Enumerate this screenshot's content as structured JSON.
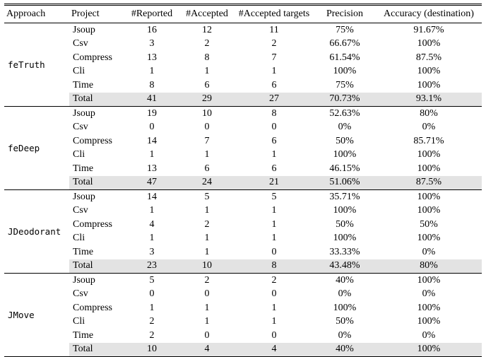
{
  "table": {
    "headers": [
      "Approach",
      "Project",
      "#Reported",
      "#Accepted",
      "#Accepted targets",
      "Precision",
      "Accuracy (destination)"
    ],
    "colors": {
      "total_row_bg": "#e3e3e3"
    },
    "groups": [
      {
        "approach": "feTruth",
        "rows": [
          [
            "Jsoup",
            "16",
            "12",
            "11",
            "75%",
            "91.67%"
          ],
          [
            "Csv",
            "3",
            "2",
            "2",
            "66.67%",
            "100%"
          ],
          [
            "Compress",
            "13",
            "8",
            "7",
            "61.54%",
            "87.5%"
          ],
          [
            "Cli",
            "1",
            "1",
            "1",
            "100%",
            "100%"
          ],
          [
            "Time",
            "8",
            "6",
            "6",
            "75%",
            "100%"
          ],
          [
            "Total",
            "41",
            "29",
            "27",
            "70.73%",
            "93.1%"
          ]
        ]
      },
      {
        "approach": "feDeep",
        "rows": [
          [
            "Jsoup",
            "19",
            "10",
            "8",
            "52.63%",
            "80%"
          ],
          [
            "Csv",
            "0",
            "0",
            "0",
            "0%",
            "0%"
          ],
          [
            "Compress",
            "14",
            "7",
            "6",
            "50%",
            "85.71%"
          ],
          [
            "Cli",
            "1",
            "1",
            "1",
            "100%",
            "100%"
          ],
          [
            "Time",
            "13",
            "6",
            "6",
            "46.15%",
            "100%"
          ],
          [
            "Total",
            "47",
            "24",
            "21",
            "51.06%",
            "87.5%"
          ]
        ]
      },
      {
        "approach": "JDeodorant",
        "rows": [
          [
            "Jsoup",
            "14",
            "5",
            "5",
            "35.71%",
            "100%"
          ],
          [
            "Csv",
            "1",
            "1",
            "1",
            "100%",
            "100%"
          ],
          [
            "Compress",
            "4",
            "2",
            "1",
            "50%",
            "50%"
          ],
          [
            "Cli",
            "1",
            "1",
            "1",
            "100%",
            "100%"
          ],
          [
            "Time",
            "3",
            "1",
            "0",
            "33.33%",
            "0%"
          ],
          [
            "Total",
            "23",
            "10",
            "8",
            "43.48%",
            "80%"
          ]
        ]
      },
      {
        "approach": "JMove",
        "rows": [
          [
            "Jsoup",
            "5",
            "2",
            "2",
            "40%",
            "100%"
          ],
          [
            "Csv",
            "0",
            "0",
            "0",
            "0%",
            "0%"
          ],
          [
            "Compress",
            "1",
            "1",
            "1",
            "100%",
            "100%"
          ],
          [
            "Cli",
            "2",
            "1",
            "1",
            "50%",
            "100%"
          ],
          [
            "Time",
            "2",
            "0",
            "0",
            "0%",
            "0%"
          ],
          [
            "Total",
            "10",
            "4",
            "4",
            "40%",
            "100%"
          ]
        ]
      }
    ]
  }
}
